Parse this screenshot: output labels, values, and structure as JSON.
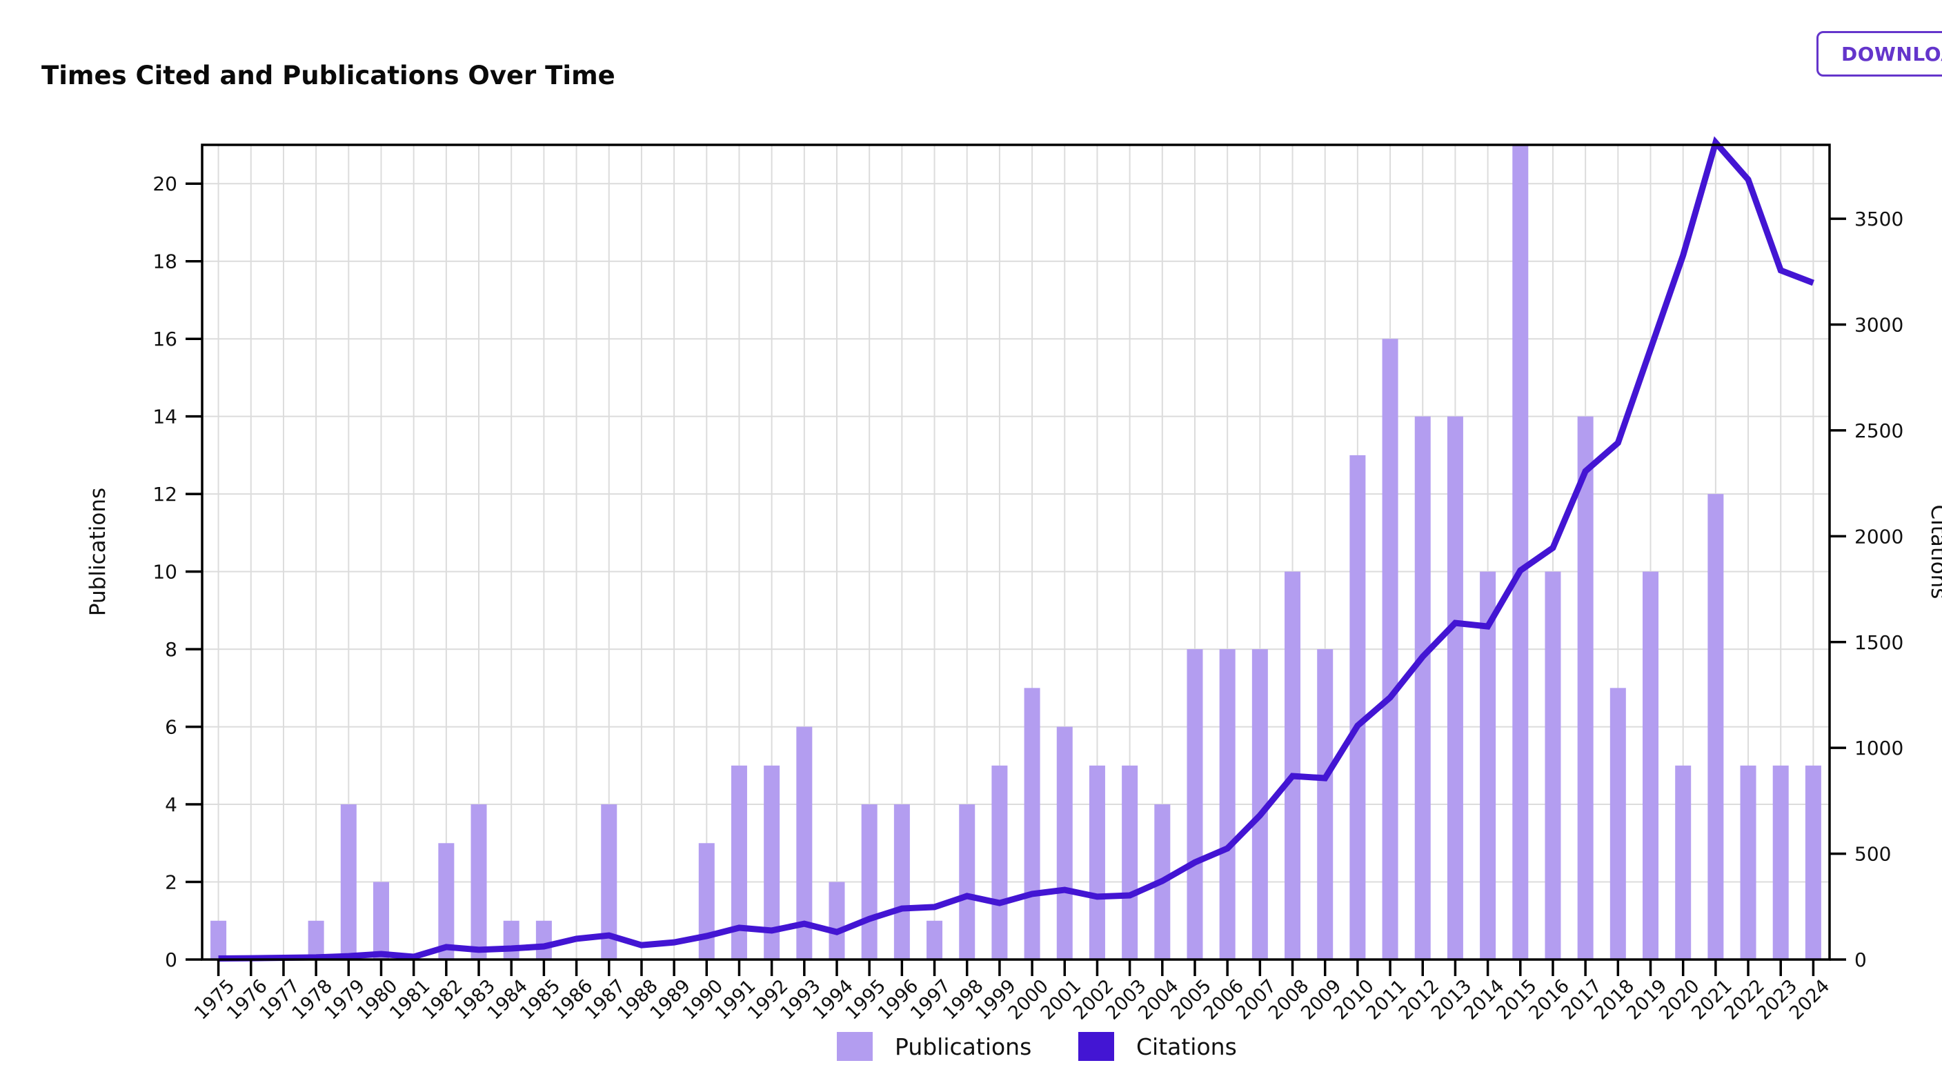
{
  "page": {
    "title": "Times Cited and Publications Over Time",
    "background": "#ffffff"
  },
  "toolbar": {
    "download_label": "DOWNLOAD"
  },
  "colors": {
    "bar": "#b39df0",
    "line": "#4315d3",
    "accent": "#6435cb",
    "axis": "#000000",
    "grid": "#dcdcdc",
    "text": "#111111"
  },
  "chart_data": {
    "type": "combo-bar-line",
    "title": "Times Cited and Publications Over Time",
    "categories": [
      "1975",
      "1976",
      "1977",
      "1978",
      "1979",
      "1980",
      "1981",
      "1982",
      "1983",
      "1984",
      "1985",
      "1986",
      "1987",
      "1988",
      "1989",
      "1990",
      "1991",
      "1992",
      "1993",
      "1994",
      "1995",
      "1996",
      "1997",
      "1998",
      "1999",
      "2000",
      "2001",
      "2002",
      "2003",
      "2004",
      "2005",
      "2006",
      "2007",
      "2008",
      "2009",
      "2010",
      "2011",
      "2012",
      "2013",
      "2014",
      "2015",
      "2016",
      "2017",
      "2018",
      "2019",
      "2020",
      "2021",
      "2022",
      "2023",
      "2024"
    ],
    "series": [
      {
        "name": "Publications",
        "type": "bar",
        "axis": "left",
        "color": "#b39df0",
        "values": [
          1,
          0,
          0,
          1,
          4,
          2,
          0,
          3,
          4,
          1,
          1,
          0,
          4,
          0,
          0,
          3,
          5,
          5,
          6,
          2,
          4,
          4,
          1,
          4,
          5,
          7,
          6,
          5,
          5,
          4,
          8,
          8,
          8,
          10,
          8,
          13,
          16,
          14,
          14,
          10,
          21,
          10,
          14,
          7,
          10,
          5,
          12,
          5,
          5,
          5
        ]
      },
      {
        "name": "Citations",
        "type": "line",
        "axis": "right",
        "color": "#4315d3",
        "values": [
          5,
          6,
          8,
          10,
          16,
          26,
          13,
          59,
          46,
          52,
          62,
          98,
          114,
          68,
          81,
          111,
          150,
          137,
          169,
          130,
          192,
          241,
          248,
          300,
          267,
          310,
          329,
          297,
          303,
          371,
          459,
          525,
          681,
          867,
          857,
          1105,
          1238,
          1431,
          1590,
          1574,
          1838,
          1945,
          2307,
          2441,
          2884,
          3327,
          3860,
          3685,
          3256,
          3197
        ]
      }
    ],
    "left_axis": {
      "label": "Publications",
      "min": 0,
      "max": 21,
      "ticks": [
        0,
        2,
        4,
        6,
        8,
        10,
        12,
        14,
        16,
        18,
        20
      ]
    },
    "right_axis": {
      "label": "Citations",
      "min": 0,
      "max": 3849,
      "ticks": [
        0,
        500,
        1000,
        1500,
        2000,
        2500,
        3000,
        3500
      ]
    },
    "x_tick_rotation": 45,
    "grid": true,
    "legend_position": "bottom",
    "legend": [
      "Publications",
      "Citations"
    ]
  }
}
